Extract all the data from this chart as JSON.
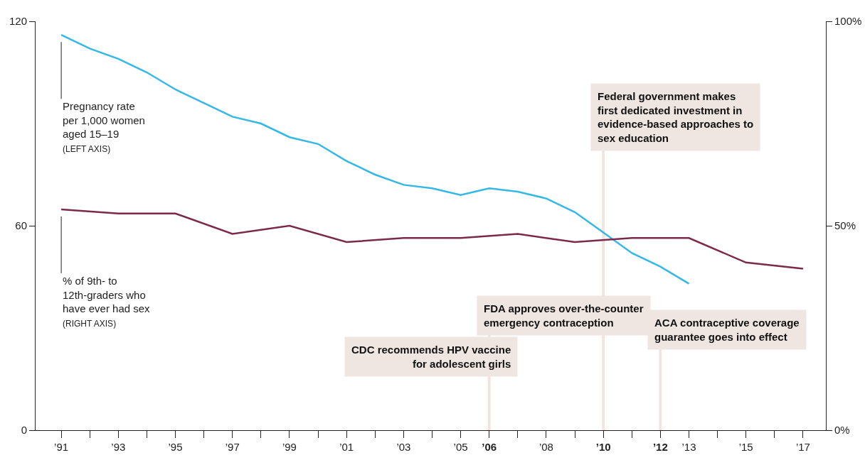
{
  "chart_data": {
    "type": "line",
    "x": [
      1991,
      1992,
      1993,
      1994,
      1995,
      1996,
      1997,
      1998,
      1999,
      2000,
      2001,
      2002,
      2003,
      2004,
      2005,
      2006,
      2007,
      2008,
      2009,
      2010,
      2011,
      2012,
      2013
    ],
    "series": [
      {
        "name": "Pregnancy rate per 1,000 women aged 15–19 (LEFT AXIS)",
        "color": "#35b8e6",
        "values": [
          116,
          112,
          109,
          105,
          100,
          96,
          92,
          90,
          86,
          84,
          79,
          75,
          72,
          71,
          69,
          71,
          70,
          68,
          64,
          58,
          52,
          48,
          43
        ]
      },
      {
        "name": "% of 9th- to 12th-graders who have ever had sex (RIGHT AXIS)",
        "color": "#7b2a4a",
        "axis": "y2",
        "x": [
          1991,
          1993,
          1995,
          1997,
          1999,
          2001,
          2003,
          2005,
          2007,
          2009,
          2011,
          2013,
          2015,
          2017
        ],
        "values": [
          54,
          53,
          53,
          48,
          50,
          46,
          47,
          47,
          48,
          46,
          47,
          47,
          41,
          39.5
        ]
      }
    ],
    "xlim": [
      1990.1,
      2017.8
    ],
    "xticks": [
      {
        "value": 1991,
        "label": "’91"
      },
      {
        "value": 1992,
        "label": null
      },
      {
        "value": 1993,
        "label": "’93"
      },
      {
        "value": 1994,
        "label": null
      },
      {
        "value": 1995,
        "label": "’95"
      },
      {
        "value": 1996,
        "label": null
      },
      {
        "value": 1997,
        "label": "’97"
      },
      {
        "value": 1998,
        "label": null
      },
      {
        "value": 1999,
        "label": "’99"
      },
      {
        "value": 2000,
        "label": null
      },
      {
        "value": 2001,
        "label": "’01"
      },
      {
        "value": 2002,
        "label": null
      },
      {
        "value": 2003,
        "label": "’03"
      },
      {
        "value": 2004,
        "label": null
      },
      {
        "value": 2005,
        "label": "’05"
      },
      {
        "value": 2006,
        "label": "’06"
      },
      {
        "value": 2007,
        "label": null
      },
      {
        "value": 2008,
        "label": "’08"
      },
      {
        "value": 2009,
        "label": null
      },
      {
        "value": 2010,
        "label": "’10"
      },
      {
        "value": 2011,
        "label": null
      },
      {
        "value": 2012,
        "label": "’12"
      },
      {
        "value": 2013,
        "label": "’13"
      },
      {
        "value": 2014,
        "label": null
      },
      {
        "value": 2015,
        "label": "’15"
      },
      {
        "value": 2016,
        "label": null
      },
      {
        "value": 2017,
        "label": "’17"
      }
    ],
    "ylim": [
      0,
      120
    ],
    "yticks": [
      0,
      60,
      120
    ],
    "y2lim": [
      0,
      100
    ],
    "y2ticks": [
      {
        "value": 0,
        "label": "0%"
      },
      {
        "value": 50,
        "label": "50%"
      },
      {
        "value": 100,
        "label": "100%"
      }
    ],
    "ref_lines": [
      {
        "axis": "x",
        "value": 2006,
        "label": "FDA approves over-the-counter emergency contraception",
        "color": "#efe6e2"
      },
      {
        "axis": "x",
        "value": 2010,
        "label": "Federal government makes first dedicated investment in evidence-based approaches to sex education",
        "color": "#efe6e2"
      },
      {
        "axis": "x",
        "value": 2012,
        "label": "ACA contraceptive coverage guarantee goes into effect",
        "color": "#efe6e2"
      }
    ],
    "annotations": [
      "CDC recommends HPV vaccine for adolescent girls"
    ],
    "grid": false,
    "legend": false,
    "marker": "none",
    "line_style": "solid"
  }
}
